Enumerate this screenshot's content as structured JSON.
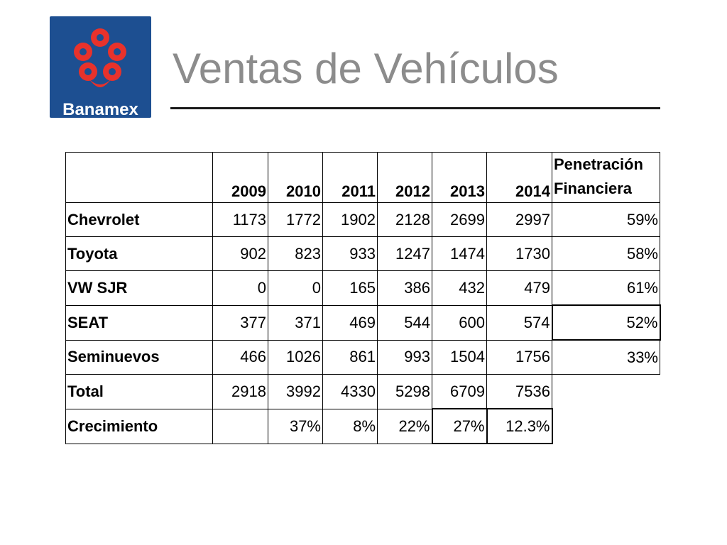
{
  "brand": {
    "name": "Banamex",
    "logo_bg": "#1d4f91",
    "logo_mark_color": "#e8322b"
  },
  "title": "Ventas de Vehículos",
  "table": {
    "headers": [
      "",
      "2009",
      "2010",
      "2011",
      "2012",
      "2013",
      "2014",
      "Penetración Financiera"
    ],
    "rows": [
      {
        "label": "Chevrolet",
        "values": [
          "1173",
          "1772",
          "1902",
          "2128",
          "2699",
          "2997",
          "59%"
        ]
      },
      {
        "label": "Toyota",
        "values": [
          "902",
          "823",
          "933",
          "1247",
          "1474",
          "1730",
          "58%"
        ]
      },
      {
        "label": "VW SJR",
        "values": [
          "0",
          "0",
          "165",
          "386",
          "432",
          "479",
          "61%"
        ]
      },
      {
        "label": "SEAT",
        "values": [
          "377",
          "371",
          "469",
          "544",
          "600",
          "574",
          "52%"
        ]
      },
      {
        "label": "Seminuevos",
        "values": [
          "466",
          "1026",
          "861",
          "993",
          "1504",
          "1756",
          "33%"
        ]
      },
      {
        "label": "Total",
        "values": [
          "2918",
          "3992",
          "4330",
          "5298",
          "6709",
          "7536",
          ""
        ]
      },
      {
        "label": "Crecimiento",
        "values": [
          "",
          "37%",
          "8%",
          "22%",
          "27%",
          "12.3%",
          ""
        ]
      }
    ]
  }
}
